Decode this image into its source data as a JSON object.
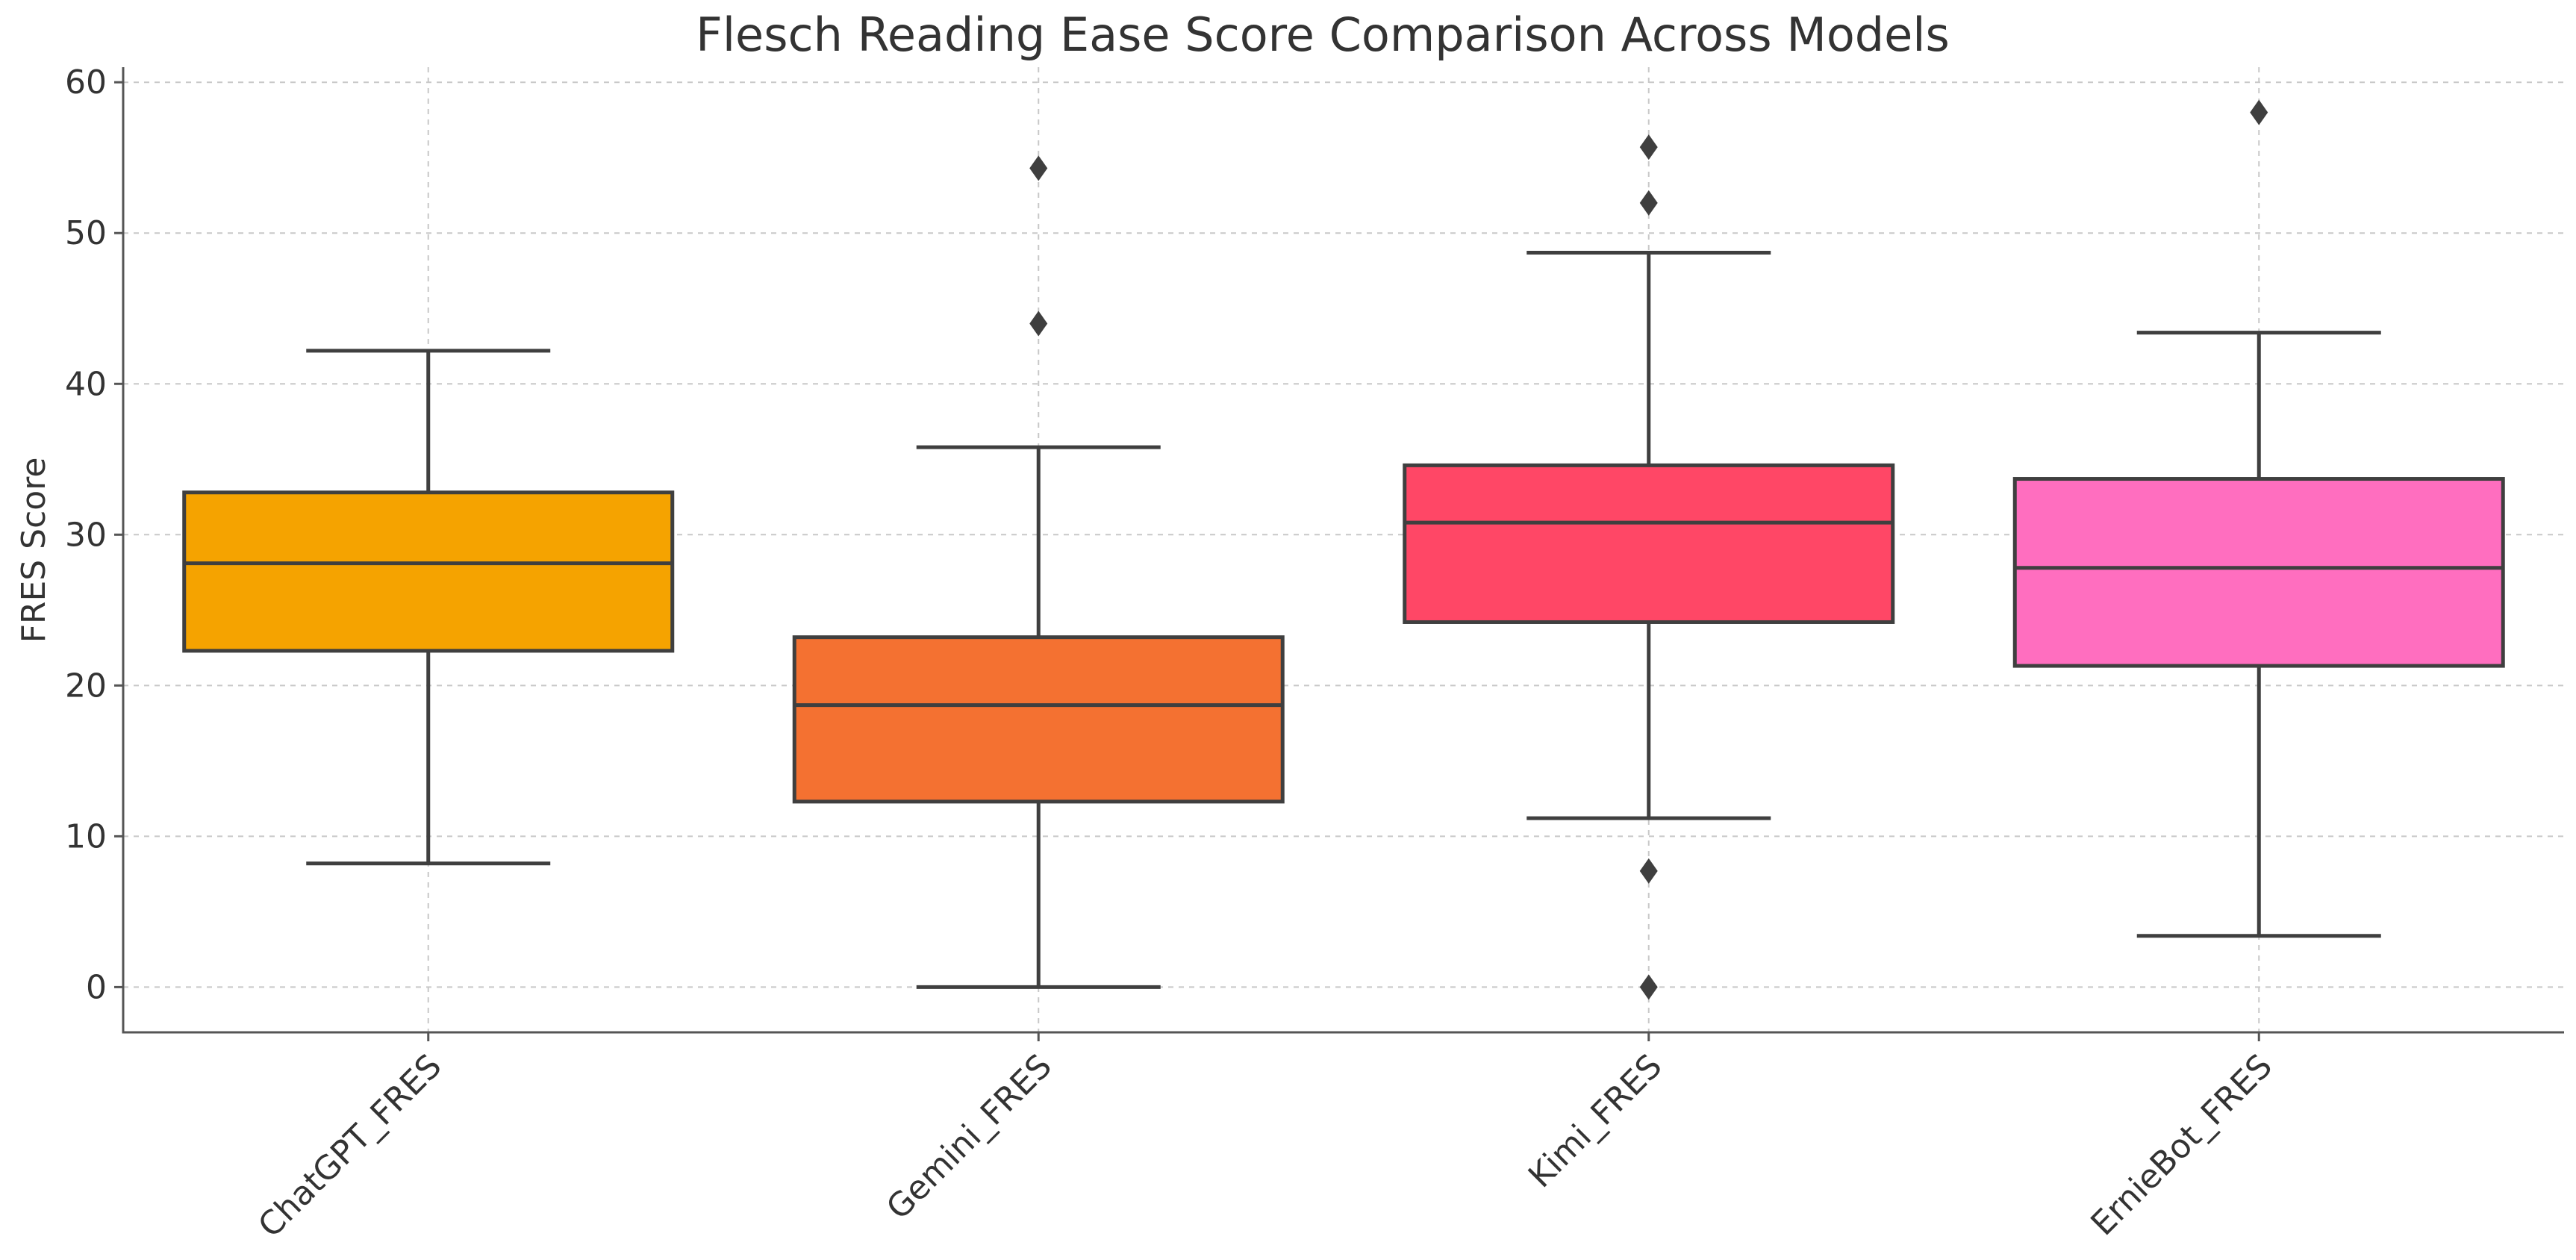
{
  "chart_data": {
    "type": "box",
    "title": "Flesch Reading Ease Score Comparison Across Models",
    "xlabel": "",
    "ylabel": "FRES Score",
    "ylim": [
      -3,
      61
    ],
    "yticks": [
      0,
      10,
      20,
      30,
      40,
      50,
      60
    ],
    "grid": true,
    "categories": [
      "ChatGPT_FRES",
      "Gemini_FRES",
      "Kimi_FRES",
      "ErnieBot_FRES"
    ],
    "series": [
      {
        "name": "ChatGPT_FRES",
        "color": "#F5A300",
        "whisker_low": 8.2,
        "q1": 22.3,
        "median": 28.1,
        "q3": 32.8,
        "whisker_high": 42.2,
        "outliers": []
      },
      {
        "name": "Gemini_FRES",
        "color": "#F47131",
        "whisker_low": 0.0,
        "q1": 12.3,
        "median": 18.7,
        "q3": 23.2,
        "whisker_high": 35.8,
        "outliers": [
          44.0,
          54.3
        ]
      },
      {
        "name": "Kimi_FRES",
        "color": "#FF4766",
        "whisker_low": 11.2,
        "q1": 24.2,
        "median": 30.8,
        "q3": 34.6,
        "whisker_high": 48.7,
        "outliers": [
          7.7,
          0.0,
          52.0,
          55.7
        ]
      },
      {
        "name": "ErnieBot_FRES",
        "color": "#FF6EBF",
        "whisker_low": 3.4,
        "q1": 21.3,
        "median": 27.8,
        "q3": 33.7,
        "whisker_high": 43.4,
        "outliers": [
          58.0
        ]
      }
    ]
  }
}
